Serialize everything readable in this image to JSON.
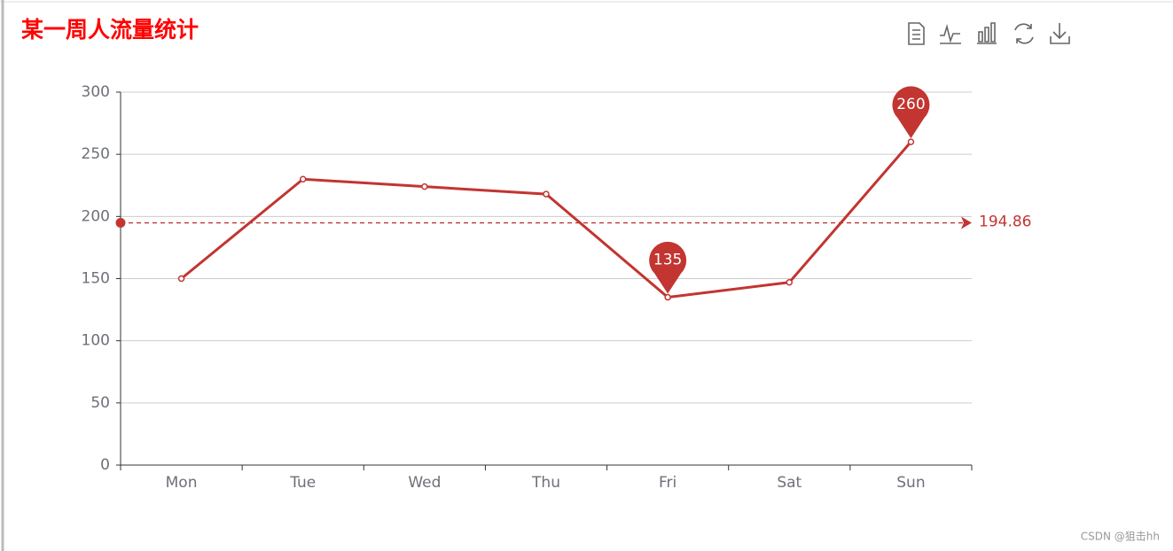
{
  "chart_data": {
    "type": "line",
    "title": "某一周人流量统计",
    "categories": [
      "Mon",
      "Tue",
      "Wed",
      "Thu",
      "Fri",
      "Sat",
      "Sun"
    ],
    "values": [
      150,
      230,
      224,
      218,
      135,
      147,
      260
    ],
    "color": "#c23531",
    "ylim": [
      0,
      300
    ],
    "yticks": [
      0,
      50,
      100,
      150,
      200,
      250,
      300
    ],
    "grid": true,
    "mark_points": [
      {
        "x": "Sun",
        "value": 260
      },
      {
        "x": "Fri",
        "value": 135
      }
    ],
    "mark_line": {
      "value": 194.86
    },
    "watermark": "CSDN @狙击hh"
  }
}
